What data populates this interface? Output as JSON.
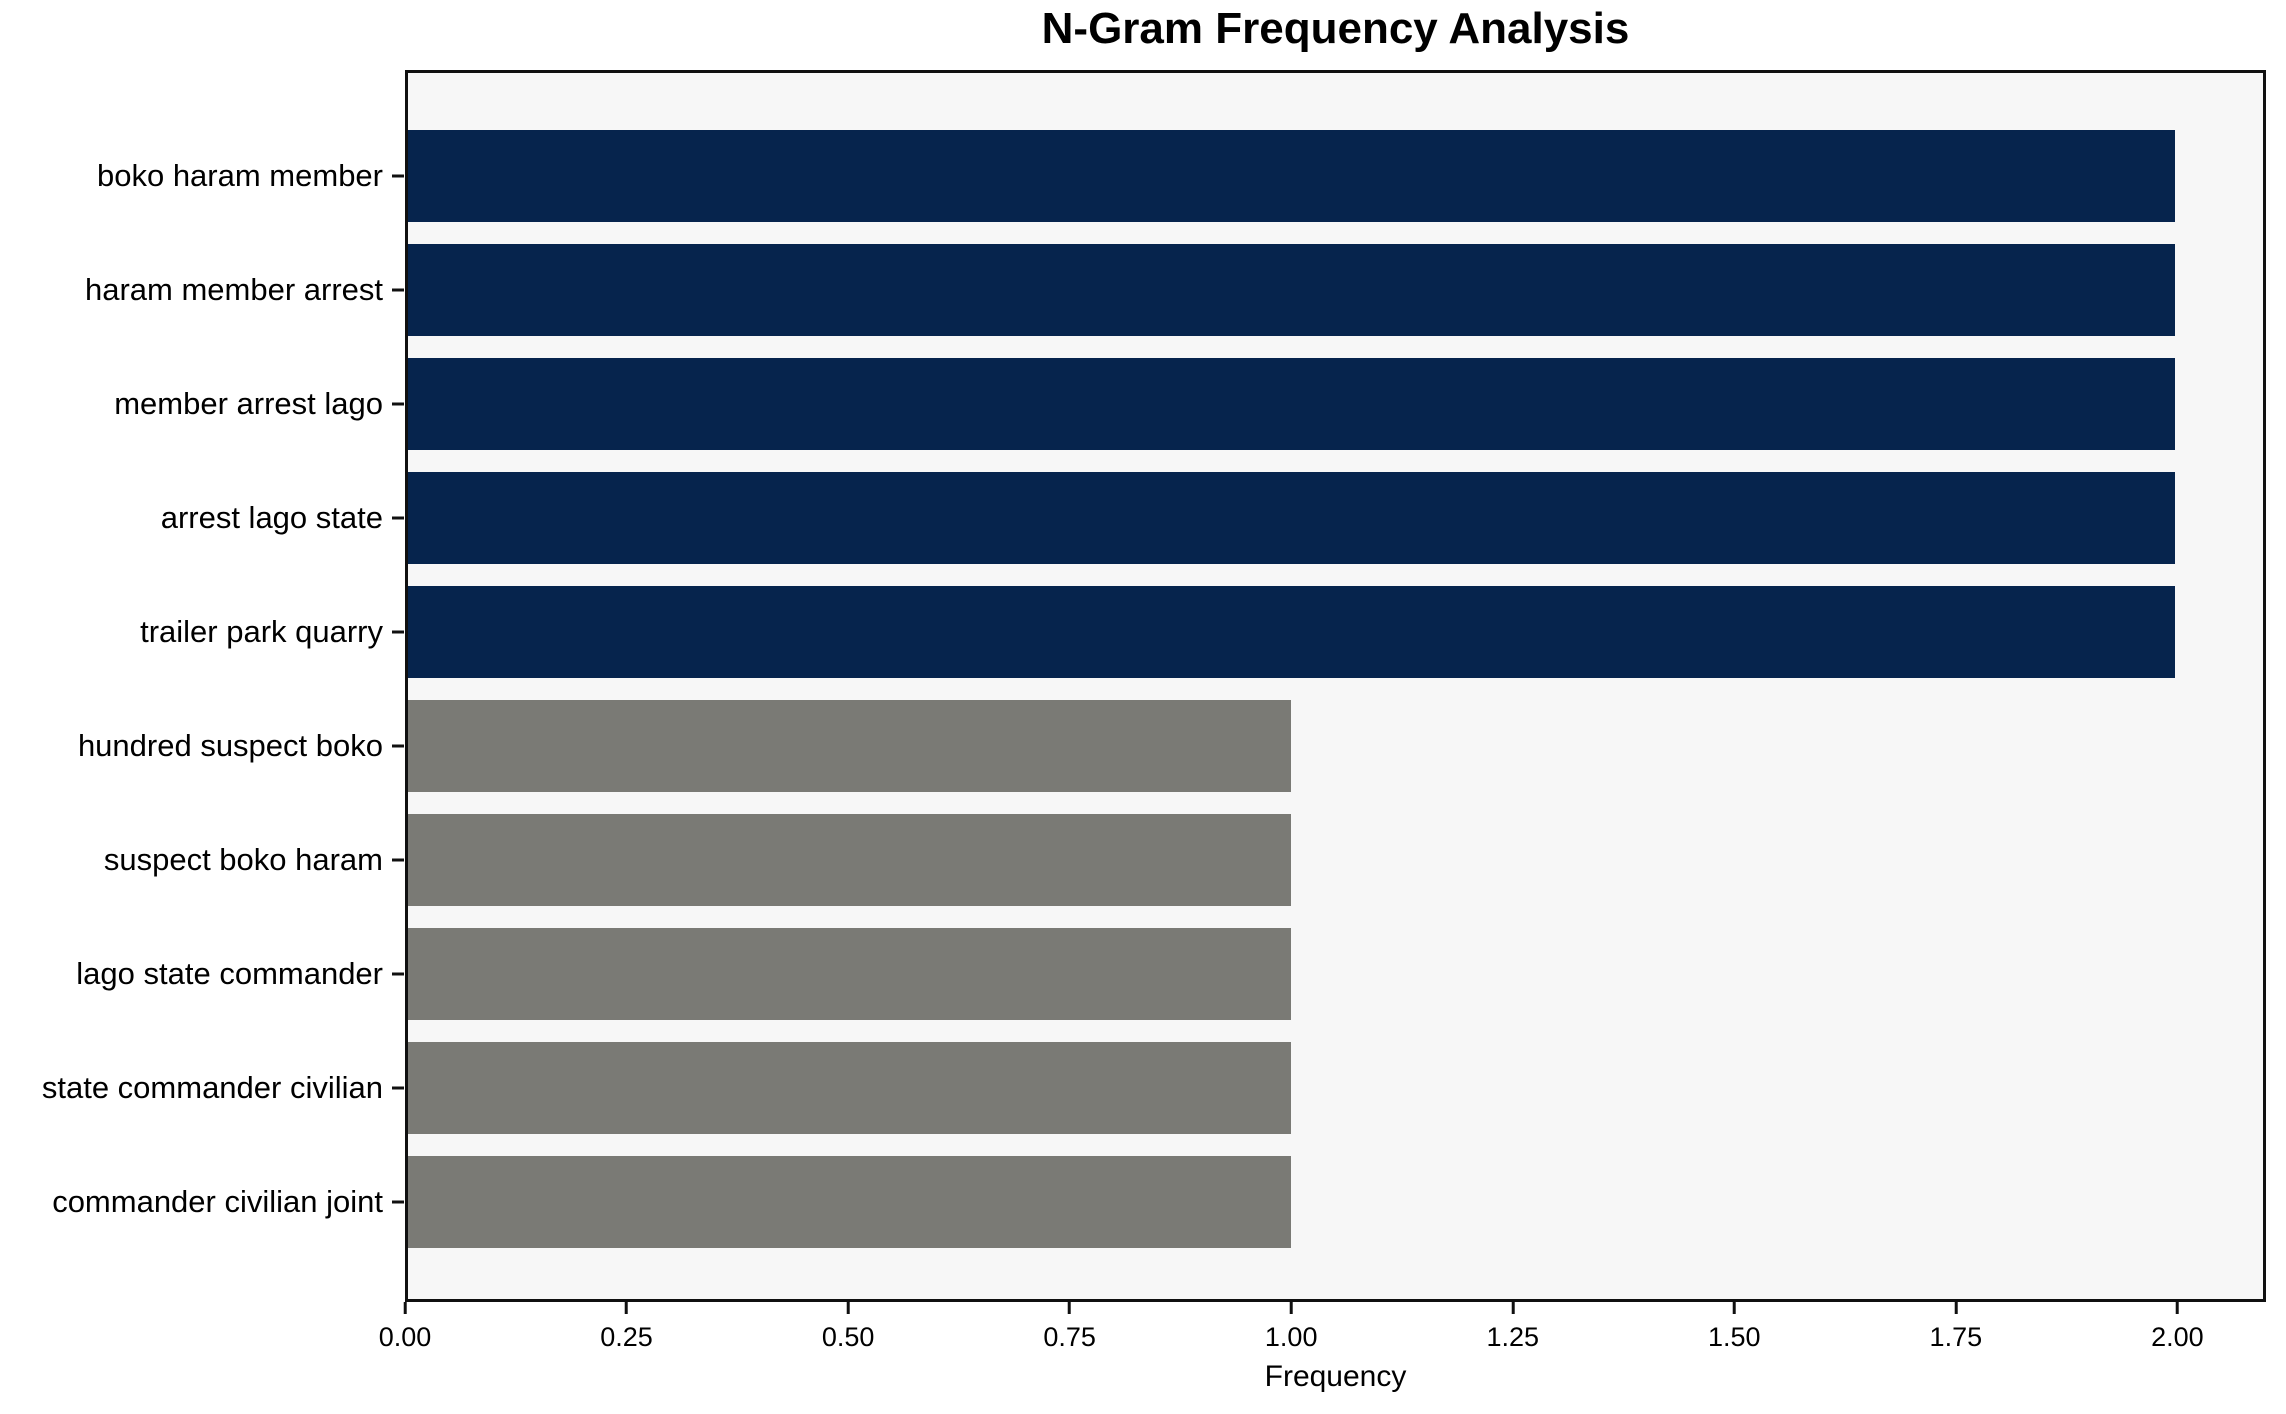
{
  "title": "N-Gram Frequency Analysis",
  "axes": {
    "xlabel": "Frequency"
  },
  "colors": {
    "bar_high": "#06244d",
    "bar_low": "#7a7a75",
    "plot_background": "#f7f7f7",
    "figure_background": "#ffffff",
    "spine": "#101010",
    "text": "#000000"
  },
  "chart_data": {
    "type": "bar",
    "orientation": "horizontal",
    "title": "N-Gram Frequency Analysis",
    "xlabel": "Frequency",
    "ylabel": "",
    "categories": [
      "boko haram member",
      "haram member arrest",
      "member arrest lago",
      "arrest lago state",
      "trailer park quarry",
      "hundred suspect boko",
      "suspect boko haram",
      "lago state commander",
      "state commander civilian",
      "commander civilian joint"
    ],
    "values": [
      2,
      2,
      2,
      2,
      2,
      1,
      1,
      1,
      1,
      1
    ],
    "bar_colors": [
      "#06244d",
      "#06244d",
      "#06244d",
      "#06244d",
      "#06244d",
      "#7a7a75",
      "#7a7a75",
      "#7a7a75",
      "#7a7a75",
      "#7a7a75"
    ],
    "xlim": [
      0,
      2.1
    ],
    "xticks": [
      0,
      0.25,
      0.5,
      0.75,
      1.0,
      1.25,
      1.5,
      1.75,
      2.0
    ],
    "xtick_labels": [
      "0.00",
      "0.25",
      "0.50",
      "0.75",
      "1.00",
      "1.25",
      "1.50",
      "1.75",
      "2.00"
    ],
    "grid": false,
    "legend": null,
    "bar_height_fraction": 0.8
  }
}
